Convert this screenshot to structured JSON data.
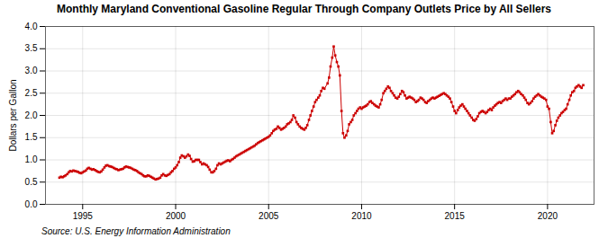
{
  "chart_data": {
    "type": "line",
    "title": "Monthly Maryland Conventional Gasoline Regular Through Company Outlets Price by All Sellers",
    "ylabel": "Dollars per Gallon",
    "annotations": [
      "Source: U.S. Energy Information Administration"
    ],
    "color": "#CC0000",
    "marker": "square",
    "line_style": "solid",
    "grid": true,
    "xlim": [
      1993.0,
      2022.5
    ],
    "ylim": [
      0.0,
      4.0
    ],
    "xticks": [
      1995,
      2000,
      2005,
      2010,
      2015,
      2020
    ],
    "yticks": [
      {
        "value": 0,
        "label": "0.0"
      },
      0.5,
      {
        "value": 1,
        "label": "1.0"
      },
      1.5,
      {
        "value": 2,
        "label": "2.0"
      },
      2.5,
      {
        "value": 3,
        "label": "3.0"
      },
      3.5,
      {
        "value": 4,
        "label": "4.0"
      }
    ],
    "x": [
      1993.75,
      1993.83,
      1993.92,
      1994.0,
      1994.08,
      1994.17,
      1994.25,
      1994.33,
      1994.42,
      1994.5,
      1994.58,
      1994.67,
      1994.75,
      1994.83,
      1994.92,
      1995.0,
      1995.08,
      1995.17,
      1995.25,
      1995.33,
      1995.42,
      1995.5,
      1995.58,
      1995.67,
      1995.75,
      1995.83,
      1995.92,
      1996.0,
      1996.08,
      1996.17,
      1996.25,
      1996.33,
      1996.42,
      1996.5,
      1996.58,
      1996.67,
      1996.75,
      1996.83,
      1996.92,
      1997.0,
      1997.08,
      1997.17,
      1997.25,
      1997.33,
      1997.42,
      1997.5,
      1997.58,
      1997.67,
      1997.75,
      1997.83,
      1997.92,
      1998.0,
      1998.08,
      1998.17,
      1998.25,
      1998.33,
      1998.42,
      1998.5,
      1998.58,
      1998.67,
      1998.75,
      1998.83,
      1998.92,
      1999.0,
      1999.08,
      1999.17,
      1999.25,
      1999.33,
      1999.42,
      1999.5,
      1999.58,
      1999.67,
      1999.75,
      1999.83,
      1999.92,
      2000.0,
      2000.08,
      2000.17,
      2000.25,
      2000.33,
      2000.42,
      2000.5,
      2000.58,
      2000.67,
      2000.75,
      2000.83,
      2000.92,
      2001.0,
      2001.08,
      2001.17,
      2001.25,
      2001.33,
      2001.42,
      2001.5,
      2001.58,
      2001.67,
      2001.75,
      2001.83,
      2001.92,
      2002.0,
      2002.08,
      2002.17,
      2002.25,
      2002.33,
      2002.42,
      2002.5,
      2002.58,
      2002.67,
      2002.75,
      2002.83,
      2002.92,
      2003.0,
      2003.08,
      2003.17,
      2003.25,
      2003.33,
      2003.42,
      2003.5,
      2003.58,
      2003.67,
      2003.75,
      2003.83,
      2003.92,
      2004.0,
      2004.08,
      2004.17,
      2004.25,
      2004.33,
      2004.42,
      2004.5,
      2004.58,
      2004.67,
      2004.75,
      2004.83,
      2004.92,
      2005.0,
      2005.08,
      2005.17,
      2005.25,
      2005.33,
      2005.42,
      2005.5,
      2005.58,
      2005.67,
      2005.75,
      2005.83,
      2005.92,
      2006.0,
      2006.08,
      2006.17,
      2006.25,
      2006.33,
      2006.42,
      2006.5,
      2006.58,
      2006.67,
      2006.75,
      2006.83,
      2006.92,
      2007.0,
      2007.08,
      2007.17,
      2007.25,
      2007.33,
      2007.42,
      2007.5,
      2007.58,
      2007.67,
      2007.75,
      2007.83,
      2007.92,
      2008.0,
      2008.17,
      2008.25,
      2008.33,
      2008.42,
      2008.5,
      2008.58,
      2008.67,
      2008.75,
      2008.83,
      2008.92,
      2009.0,
      2009.08,
      2009.17,
      2009.25,
      2009.33,
      2009.42,
      2009.5,
      2009.58,
      2009.67,
      2009.75,
      2009.83,
      2009.92,
      2010.0,
      2010.08,
      2010.17,
      2010.25,
      2010.33,
      2010.42,
      2010.5,
      2010.58,
      2010.67,
      2010.75,
      2010.83,
      2010.92,
      2011.0,
      2011.08,
      2011.17,
      2011.25,
      2011.33,
      2011.42,
      2011.5,
      2011.58,
      2011.67,
      2011.75,
      2011.83,
      2011.92,
      2012.0,
      2012.08,
      2012.17,
      2012.25,
      2012.33,
      2012.42,
      2012.5,
      2012.58,
      2012.67,
      2012.75,
      2012.83,
      2012.92,
      2013.0,
      2013.08,
      2013.17,
      2013.25,
      2013.33,
      2013.42,
      2013.5,
      2013.58,
      2013.67,
      2013.75,
      2013.83,
      2013.92,
      2014.0,
      2014.08,
      2014.17,
      2014.25,
      2014.33,
      2014.42,
      2014.5,
      2014.58,
      2014.67,
      2014.75,
      2014.83,
      2014.92,
      2015.0,
      2015.08,
      2015.17,
      2015.25,
      2015.33,
      2015.42,
      2015.5,
      2015.58,
      2015.67,
      2015.75,
      2015.83,
      2015.92,
      2016.0,
      2016.08,
      2016.17,
      2016.25,
      2016.33,
      2016.42,
      2016.5,
      2016.58,
      2016.67,
      2016.75,
      2016.83,
      2016.92,
      2017.0,
      2017.08,
      2017.17,
      2017.25,
      2017.33,
      2017.42,
      2017.5,
      2017.58,
      2017.67,
      2017.75,
      2017.83,
      2017.92,
      2018.0,
      2018.08,
      2018.17,
      2018.25,
      2018.33,
      2018.42,
      2018.5,
      2018.58,
      2018.67,
      2018.75,
      2018.83,
      2018.92,
      2019.0,
      2019.08,
      2019.17,
      2019.25,
      2019.33,
      2019.42,
      2019.5,
      2019.58,
      2019.67,
      2019.75,
      2019.83,
      2019.92,
      2020.0,
      2020.08,
      2020.17,
      2020.25,
      2020.33,
      2020.42,
      2020.5,
      2020.58,
      2020.67,
      2020.75,
      2020.83,
      2020.92,
      2021.0,
      2021.08,
      2021.17,
      2021.25,
      2021.33,
      2021.42,
      2021.5,
      2021.58,
      2021.67,
      2021.75,
      2021.83,
      2021.92
    ],
    "values": [
      0.6,
      0.62,
      0.61,
      0.63,
      0.65,
      0.68,
      0.72,
      0.75,
      0.74,
      0.76,
      0.75,
      0.74,
      0.73,
      0.71,
      0.7,
      0.72,
      0.74,
      0.76,
      0.8,
      0.82,
      0.8,
      0.78,
      0.79,
      0.77,
      0.75,
      0.73,
      0.72,
      0.74,
      0.78,
      0.83,
      0.87,
      0.88,
      0.86,
      0.85,
      0.84,
      0.82,
      0.8,
      0.79,
      0.77,
      0.78,
      0.79,
      0.8,
      0.83,
      0.85,
      0.84,
      0.83,
      0.82,
      0.8,
      0.78,
      0.77,
      0.75,
      0.72,
      0.7,
      0.68,
      0.65,
      0.63,
      0.63,
      0.65,
      0.64,
      0.62,
      0.6,
      0.58,
      0.56,
      0.57,
      0.58,
      0.6,
      0.65,
      0.68,
      0.65,
      0.64,
      0.66,
      0.68,
      0.72,
      0.75,
      0.8,
      0.83,
      0.88,
      0.95,
      1.05,
      1.1,
      1.08,
      1.05,
      1.08,
      1.12,
      1.09,
      1.02,
      0.96,
      0.97,
      1.0,
      1.0,
      1.0,
      0.95,
      0.9,
      0.92,
      0.9,
      0.88,
      0.84,
      0.78,
      0.72,
      0.72,
      0.75,
      0.8,
      0.88,
      0.92,
      0.9,
      0.92,
      0.94,
      0.96,
      0.98,
      0.99,
      0.97,
      1.0,
      1.02,
      1.05,
      1.08,
      1.1,
      1.12,
      1.14,
      1.16,
      1.18,
      1.2,
      1.22,
      1.24,
      1.26,
      1.28,
      1.3,
      1.32,
      1.35,
      1.38,
      1.4,
      1.42,
      1.44,
      1.46,
      1.48,
      1.5,
      1.52,
      1.55,
      1.6,
      1.65,
      1.68,
      1.7,
      1.75,
      1.72,
      1.68,
      1.7,
      1.72,
      1.75,
      1.8,
      1.82,
      1.85,
      1.9,
      2.0,
      1.95,
      1.85,
      1.8,
      1.75,
      1.72,
      1.7,
      1.68,
      1.72,
      1.78,
      1.9,
      2.0,
      2.1,
      2.2,
      2.3,
      2.35,
      2.4,
      2.45,
      2.55,
      2.62,
      2.6,
      2.72,
      2.85,
      3.1,
      3.3,
      3.55,
      3.35,
      3.2,
      3.1,
      2.9,
      2.1,
      1.6,
      1.5,
      1.55,
      1.65,
      1.8,
      1.85,
      1.9,
      2.0,
      2.05,
      2.1,
      2.15,
      2.18,
      2.15,
      2.18,
      2.2,
      2.22,
      2.25,
      2.3,
      2.32,
      2.28,
      2.25,
      2.22,
      2.2,
      2.18,
      2.25,
      2.35,
      2.5,
      2.55,
      2.6,
      2.65,
      2.62,
      2.55,
      2.5,
      2.45,
      2.4,
      2.38,
      2.42,
      2.48,
      2.55,
      2.52,
      2.45,
      2.38,
      2.4,
      2.42,
      2.4,
      2.38,
      2.35,
      2.3,
      2.32,
      2.35,
      2.4,
      2.38,
      2.35,
      2.3,
      2.28,
      2.32,
      2.35,
      2.38,
      2.4,
      2.38,
      2.4,
      2.42,
      2.44,
      2.46,
      2.48,
      2.5,
      2.48,
      2.45,
      2.42,
      2.38,
      2.3,
      2.2,
      2.1,
      2.05,
      2.12,
      2.18,
      2.22,
      2.25,
      2.2,
      2.15,
      2.1,
      2.05,
      2.0,
      1.95,
      1.9,
      1.88,
      1.92,
      1.98,
      2.05,
      2.08,
      2.1,
      2.08,
      2.05,
      2.08,
      2.12,
      2.15,
      2.12,
      2.18,
      2.22,
      2.25,
      2.28,
      2.3,
      2.28,
      2.32,
      2.35,
      2.38,
      2.35,
      2.38,
      2.38,
      2.42,
      2.45,
      2.48,
      2.52,
      2.55,
      2.52,
      2.48,
      2.45,
      2.4,
      2.35,
      2.28,
      2.25,
      2.28,
      2.32,
      2.38,
      2.42,
      2.45,
      2.48,
      2.45,
      2.42,
      2.4,
      2.38,
      2.35,
      2.2,
      2.15,
      1.85,
      1.6,
      1.65,
      1.78,
      1.88,
      1.95,
      2.0,
      2.05,
      2.08,
      2.12,
      2.15,
      2.25,
      2.35,
      2.45,
      2.52,
      2.55,
      2.62,
      2.65,
      2.68,
      2.65,
      2.62,
      2.68
    ]
  }
}
